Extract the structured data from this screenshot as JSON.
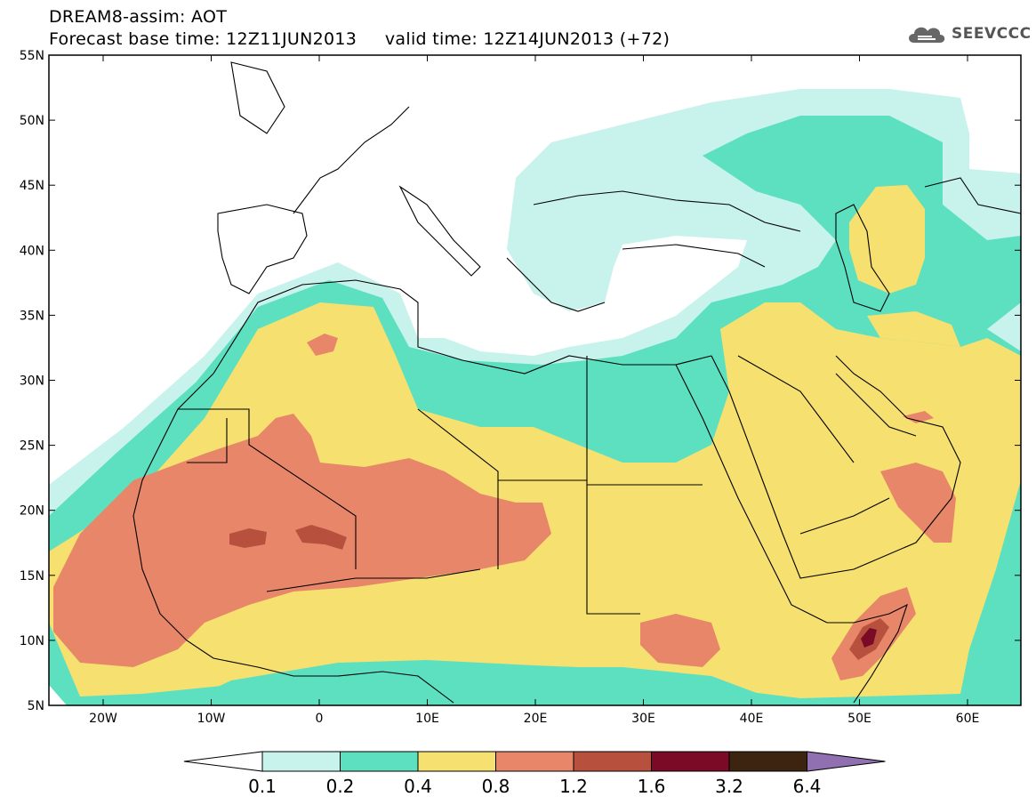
{
  "header": {
    "line1": "DREAM8-assim: AOT",
    "line2": "Forecast base time: 12Z11JUN2013     valid time: 12Z14JUN2013 (+72)"
  },
  "logo": {
    "text": "SEEVCCC",
    "icon": "cloud-icon"
  },
  "map": {
    "lat_labels": [
      "55N",
      "50N",
      "45N",
      "40N",
      "35N",
      "30N",
      "25N",
      "20N",
      "15N",
      "10N",
      "5N"
    ],
    "lon_labels": [
      "20W",
      "10W",
      "0",
      "10E",
      "20E",
      "30E",
      "40E",
      "50E",
      "60E"
    ],
    "colors": {
      "c1": "#c8f2ec",
      "c2": "#5ce0c0",
      "c3": "#f6e070",
      "c4": "#e8866a",
      "c5": "#b8503e",
      "c6": "#7a0a26",
      "c7": "#3c2410",
      "c8": "#9070b0"
    }
  },
  "colorbar": {
    "labels": [
      "0.1",
      "0.2",
      "0.4",
      "0.8",
      "1.2",
      "1.6",
      "3.2",
      "6.4"
    ]
  }
}
